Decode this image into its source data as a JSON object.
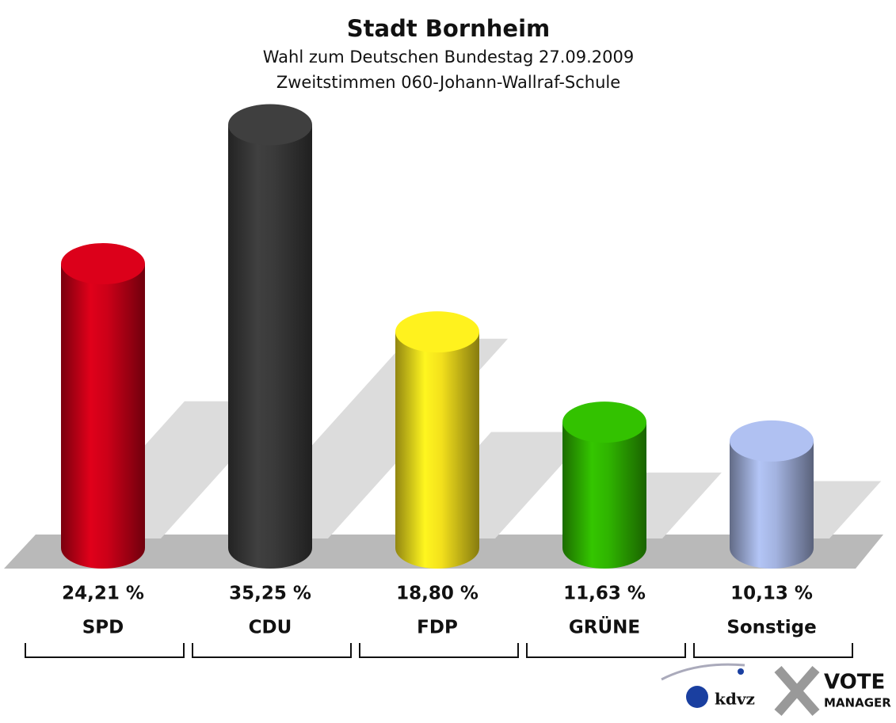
{
  "chart_data": {
    "type": "bar3d",
    "title": "Stadt Bornheim",
    "subtitle": "Wahl zum Deutschen Bundestag 27.09.2009",
    "subtitle2": "Zweitstimmen 060-Johann-Wallraf-Schule",
    "categories": [
      "SPD",
      "CDU",
      "FDP",
      "GRÜNE",
      "Sonstige"
    ],
    "values": [
      24.21,
      35.25,
      18.8,
      11.63,
      10.13
    ],
    "value_labels": [
      "24,21 %",
      "35,25 %",
      "18,80 %",
      "11,63 %",
      "10,13 %"
    ],
    "colors": [
      "#cc0018",
      "#3a3a3a",
      "#f3e01c",
      "#2fb400",
      "#a3b3e0"
    ],
    "logo": [
      "kdvz",
      "VOTE",
      "MANAGER"
    ]
  }
}
